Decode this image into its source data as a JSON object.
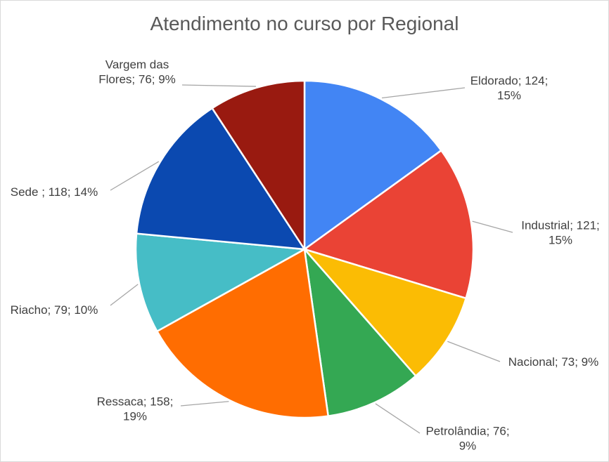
{
  "chart_data": {
    "type": "pie",
    "title": "Atendimento no curso por Regional",
    "slices": [
      {
        "name": "Eldorado",
        "value": 124,
        "percent_label": "15%",
        "color": "#4285f4",
        "label_lines": [
          "Eldorado; 124;",
          "15%"
        ]
      },
      {
        "name": "Industrial",
        "value": 121,
        "percent_label": "15%",
        "color": "#ea4335",
        "label_lines": [
          "Industrial; 121;",
          "15%"
        ]
      },
      {
        "name": "Nacional",
        "value": 73,
        "percent_label": "9%",
        "color": "#fbbc04",
        "label_lines": [
          "Nacional; 73; 9%"
        ]
      },
      {
        "name": "Petrolândia",
        "value": 76,
        "percent_label": "9%",
        "color": "#34a853",
        "label_lines": [
          "Petrolândia; 76;",
          "9%"
        ]
      },
      {
        "name": "Ressaca",
        "value": 158,
        "percent_label": "19%",
        "color": "#ff6d01",
        "label_lines": [
          "Ressaca; 158;",
          "19%"
        ]
      },
      {
        "name": "Riacho",
        "value": 79,
        "percent_label": "10%",
        "color": "#46bdc6",
        "label_lines": [
          "Riacho; 79; 10%"
        ]
      },
      {
        "name": "Sede ",
        "value": 118,
        "percent_label": "14%",
        "color": "#0b49b0",
        "label_lines": [
          "Sede ; 118; 14%"
        ]
      },
      {
        "name": "Vargem das Flores",
        "value": 76,
        "percent_label": "9%",
        "color": "#991a10",
        "label_lines": [
          "Vargem das",
          "Flores; 76; 9%"
        ]
      }
    ],
    "start_angle": "12 o'clock",
    "direction": "clockwise",
    "legend": "none",
    "data_labels": "outside with leader lines"
  }
}
